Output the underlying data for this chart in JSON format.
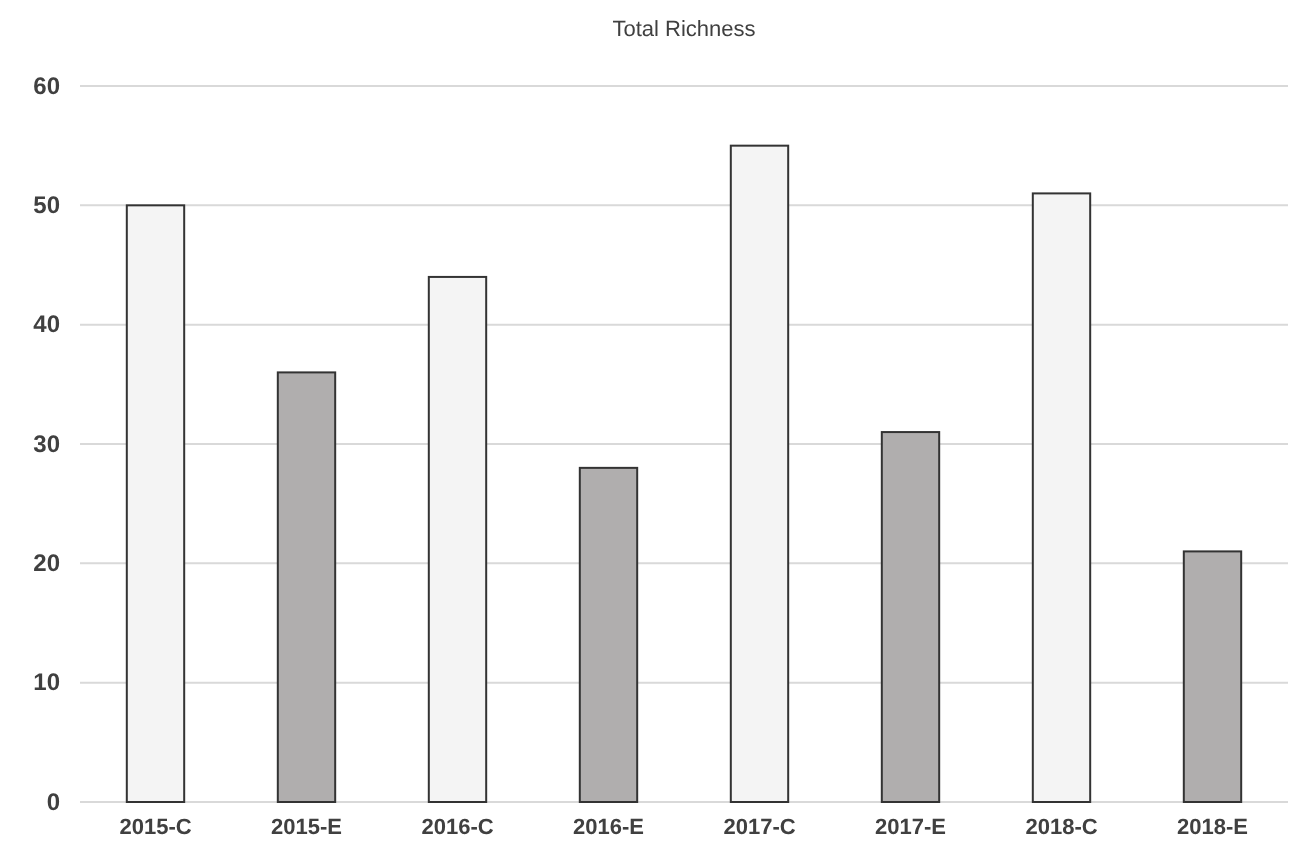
{
  "chart_data": {
    "type": "bar",
    "title": "Total Richness",
    "categories": [
      "2015-C",
      "2015-E",
      "2016-C",
      "2016-E",
      "2017-C",
      "2017-E",
      "2018-C",
      "2018-E"
    ],
    "values": [
      50,
      36,
      44,
      28,
      55,
      31,
      51,
      21
    ],
    "colors": [
      "#f4f4f4",
      "#b0aeae",
      "#f4f4f4",
      "#b0aeae",
      "#f4f4f4",
      "#b0aeae",
      "#f4f4f4",
      "#b0aeae"
    ],
    "ylim": [
      0,
      60
    ],
    "yticks": [
      0,
      10,
      20,
      30,
      40,
      50,
      60
    ],
    "grid": "y"
  }
}
